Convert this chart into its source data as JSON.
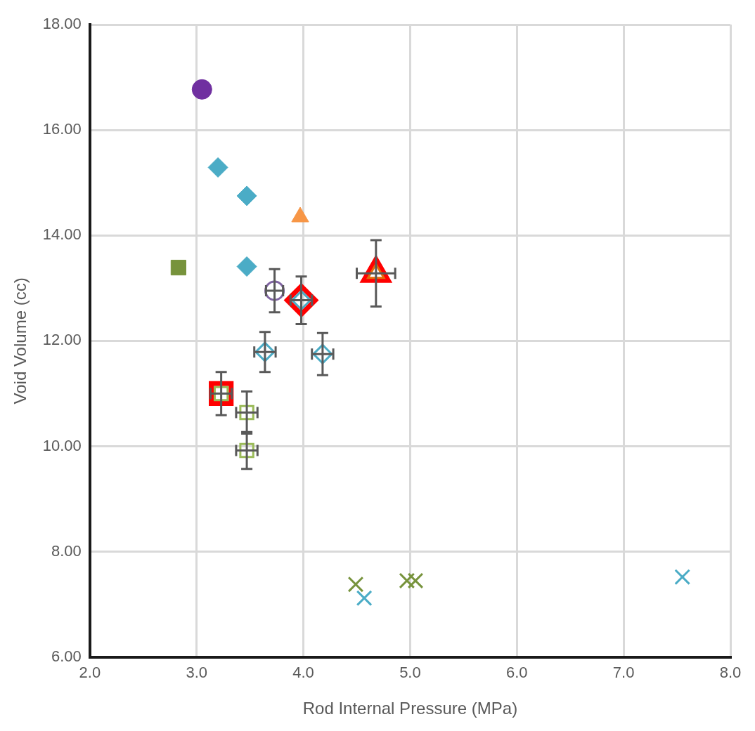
{
  "chart_data": {
    "type": "scatter",
    "xlabel": "Rod Internal Pressure (MPa)",
    "ylabel": "Void Volume (cc)",
    "xlim": [
      2,
      8
    ],
    "xticks": [
      {
        "value": 2,
        "label": "2.0"
      },
      {
        "value": 3,
        "label": "3.0"
      },
      {
        "value": 4,
        "label": "4.0"
      },
      {
        "value": 5,
        "label": "5.0"
      },
      {
        "value": 6,
        "label": "6.0"
      },
      {
        "value": 7,
        "label": "7.0"
      },
      {
        "value": 8,
        "label": "8.0"
      }
    ],
    "ylim": [
      6,
      18
    ],
    "yticks": [
      {
        "value": 6,
        "label": "6.00"
      },
      {
        "value": 8,
        "label": "8.00"
      },
      {
        "value": 10,
        "label": "10.00"
      },
      {
        "value": 12,
        "label": "12.00"
      },
      {
        "value": 14,
        "label": "14.00"
      },
      {
        "value": 16,
        "label": "16.00"
      },
      {
        "value": 18,
        "label": "18.00"
      }
    ],
    "grid": true,
    "legend": false,
    "series": [
      {
        "color": "#7030a0",
        "marker": "circle",
        "x": [
          3.05
        ],
        "values": [
          16.77
        ]
      },
      {
        "color": "#4bacc6",
        "marker": "diamond",
        "x": [
          3.2,
          3.47,
          3.47
        ],
        "values": [
          15.29,
          14.75,
          13.41
        ]
      },
      {
        "color": "#f79646",
        "marker": "triangle",
        "x": [
          3.97
        ],
        "values": [
          14.35
        ]
      },
      {
        "color": "#77933c",
        "marker": "square",
        "x": [
          2.83
        ],
        "values": [
          13.39
        ]
      },
      {
        "color": "#8064a2",
        "marker": "circle",
        "x": [
          3.73
        ],
        "values": [
          12.95
        ],
        "errors": [
          0.41
        ],
        "xerrors": [
          0.08
        ]
      },
      {
        "color": "#4bacc6",
        "marker": "diamond",
        "x": [
          3.98,
          3.64,
          4.18
        ],
        "values": [
          12.77,
          11.79,
          11.75
        ],
        "errors": [
          0.45,
          0.38,
          0.4
        ],
        "xerrors": [
          0.1,
          0.1,
          0.1
        ]
      },
      {
        "color": "#e46c0a",
        "marker": "triangle",
        "x": [
          4.68
        ],
        "values": [
          13.28
        ],
        "errors": [
          0.63
        ],
        "xerrors": [
          0.18
        ]
      },
      {
        "color": "#9bbb59",
        "marker": "square",
        "x": [
          3.23,
          3.47,
          3.47
        ],
        "values": [
          11.0,
          10.64,
          9.92
        ],
        "errors": [
          0.41,
          0.4,
          0.35
        ],
        "xerrors": [
          0.1,
          0.1,
          0.1
        ]
      },
      {
        "color": "#ff0000",
        "marker": "square",
        "x": [
          3.23
        ],
        "values": [
          11.0
        ]
      },
      {
        "color": "#ff0000",
        "marker": "diamond",
        "x": [
          3.98
        ],
        "values": [
          12.77
        ]
      },
      {
        "color": "#ff0000",
        "marker": "triangle",
        "x": [
          4.68
        ],
        "values": [
          13.28
        ]
      },
      {
        "color": "#77933c",
        "marker": "cross",
        "x": [
          4.49,
          4.97,
          5.05
        ],
        "values": [
          7.38,
          7.45,
          7.45
        ]
      },
      {
        "color": "#4bacc6",
        "marker": "cross",
        "x": [
          4.57,
          7.55
        ],
        "values": [
          7.12,
          7.52
        ]
      }
    ]
  }
}
